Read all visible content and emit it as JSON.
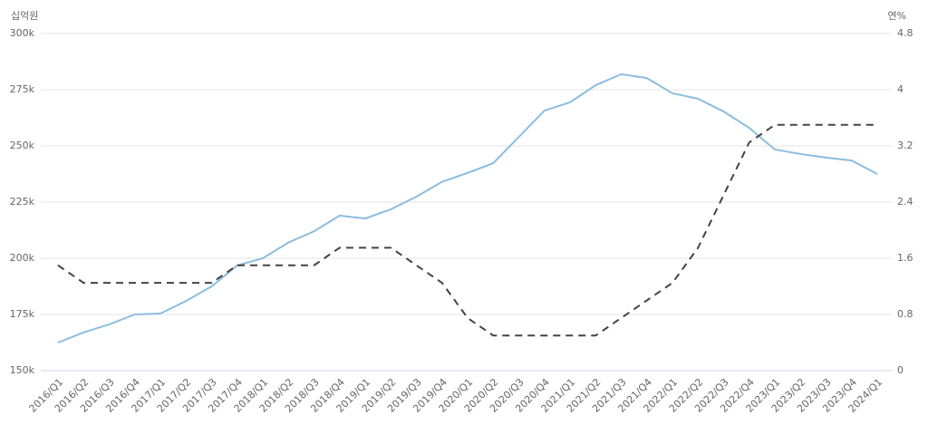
{
  "chart_data": {
    "type": "line",
    "y_label": "십억원",
    "y2_label": "연%",
    "categories": [
      "2016/Q1",
      "2016/Q2",
      "2016/Q3",
      "2016/Q4",
      "2017/Q1",
      "2017/Q2",
      "2017/Q3",
      "2017/Q4",
      "2018/Q1",
      "2018/Q2",
      "2018/Q3",
      "2018/Q4",
      "2019/Q1",
      "2019/Q2",
      "2019/Q3",
      "2019/Q4",
      "2020/Q1",
      "2020/Q2",
      "2020/Q3",
      "2020/Q4",
      "2021/Q1",
      "2021/Q2",
      "2021/Q3",
      "2021/Q4",
      "2022/Q1",
      "2022/Q2",
      "2022/Q3",
      "2022/Q4",
      "2023/Q1",
      "2023/Q2",
      "2023/Q3",
      "2023/Q4",
      "2024/Q1"
    ],
    "series": [
      {
        "color": "#8bbde0",
        "line_style": "solid",
        "values": [
          162500,
          167000,
          170600,
          175000,
          175400,
          181000,
          187500,
          196800,
          200000,
          207000,
          212000,
          219000,
          217700,
          221800,
          227400,
          234000,
          238000,
          242300,
          254000,
          265700,
          269400,
          277000,
          281900,
          280200,
          273400,
          271000,
          265300,
          258000,
          248400,
          246400,
          244800,
          243500,
          237500
        ]
      },
      {
        "color": "#444444",
        "line_style": "dashed",
        "axis": "y2",
        "values": [
          1.5,
          1.25,
          1.25,
          1.25,
          1.25,
          1.25,
          1.25,
          1.5,
          1.5,
          1.5,
          1.5,
          1.75,
          1.75,
          1.75,
          1.5,
          1.25,
          0.75,
          0.5,
          0.5,
          0.5,
          0.5,
          0.5,
          0.75,
          1.0,
          1.25,
          1.75,
          2.5,
          3.25,
          3.5,
          3.5,
          3.5,
          3.5,
          3.5
        ]
      }
    ],
    "ylim": [
      150000,
      300000
    ],
    "yticks": [
      {
        "value": 150000,
        "label": "150k"
      },
      {
        "value": 175000,
        "label": "175k"
      },
      {
        "value": 200000,
        "label": "200k"
      },
      {
        "value": 225000,
        "label": "225k"
      },
      {
        "value": 250000,
        "label": "250k"
      },
      {
        "value": 275000,
        "label": "275k"
      },
      {
        "value": 300000,
        "label": "300k"
      }
    ],
    "y2lim": [
      0,
      4.8
    ],
    "y2ticks": [
      0,
      0.8,
      1.6,
      2.4,
      3.2,
      4,
      4.8
    ],
    "grid": true
  }
}
